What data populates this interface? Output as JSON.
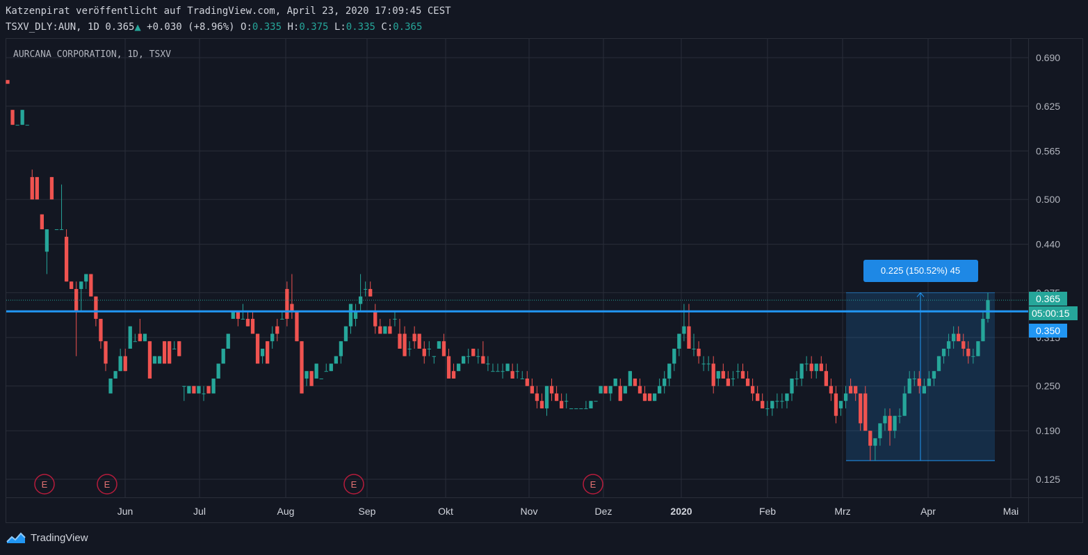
{
  "header": {
    "publisher_line": "Katzenpirat veröffentlicht auf TradingView.com, April 23, 2020 17:09:45 CEST",
    "symbol": "TSXV_DLY:AUN,",
    "interval": "1D",
    "last": "0.365",
    "change": "+0.030",
    "change_pct": "(+8.96%)",
    "o_label": "O:",
    "o_value": "0.335",
    "h_label": "H:",
    "h_value": "0.375",
    "l_label": "L:",
    "l_value": "0.335",
    "c_label": "C:",
    "c_value": "0.365"
  },
  "footer": {
    "brand": "TradingView"
  },
  "chart_data": {
    "type": "candlestick",
    "title": "AURCANA CORPORATION, 1D, TSXV",
    "y_ticks": [
      "0.690",
      "0.625",
      "0.565",
      "0.500",
      "0.440",
      "0.375",
      "0.315",
      "0.250",
      "0.190",
      "0.125"
    ],
    "x_ticks": [
      "Jun",
      "Jul",
      "Aug",
      "Sep",
      "Okt",
      "Nov",
      "Dez",
      "2020",
      "Feb",
      "Mrz",
      "Apr",
      "Mai"
    ],
    "ylim": [
      0.11,
      0.71
    ],
    "grid": true,
    "price_labels": {
      "last": "0.365",
      "countdown": "05:00:15",
      "line": "0.350"
    },
    "horizontal_line": 0.35,
    "measure": {
      "text": "0.225 (150.52%) 45",
      "from": 0.15,
      "to": 0.375,
      "bars": 45
    },
    "earnings_markers": [
      "E",
      "E",
      "E",
      "E"
    ],
    "colors": {
      "up": "#26a69a",
      "down": "#ef5350",
      "line": "#2196f3",
      "bg": "#131722",
      "grid": "#2a2e39"
    },
    "candles": [
      [
        0.66,
        0.66,
        0.655,
        0.655
      ],
      [
        0.62,
        0.62,
        0.6,
        0.6
      ],
      [
        0.6,
        0.6,
        0.6,
        0.6
      ],
      [
        0.6,
        0.62,
        0.6,
        0.62
      ],
      [
        0.6,
        0.6,
        0.6,
        0.6
      ],
      [
        0.53,
        0.54,
        0.5,
        0.5
      ],
      [
        0.53,
        0.53,
        0.5,
        0.5
      ],
      [
        0.48,
        0.48,
        0.46,
        0.46
      ],
      [
        0.43,
        0.46,
        0.4,
        0.46
      ],
      [
        0.53,
        0.53,
        0.5,
        0.5
      ],
      [
        0.46,
        0.46,
        0.46,
        0.46
      ],
      [
        0.46,
        0.52,
        0.46,
        0.46
      ],
      [
        0.45,
        0.46,
        0.39,
        0.39
      ],
      [
        0.39,
        0.39,
        0.38,
        0.38
      ],
      [
        0.38,
        0.39,
        0.29,
        0.35
      ],
      [
        0.38,
        0.39,
        0.35,
        0.39
      ],
      [
        0.39,
        0.4,
        0.38,
        0.4
      ],
      [
        0.4,
        0.4,
        0.37,
        0.37
      ],
      [
        0.37,
        0.37,
        0.33,
        0.34
      ],
      [
        0.34,
        0.34,
        0.3,
        0.31
      ],
      [
        0.31,
        0.31,
        0.27,
        0.28
      ],
      [
        0.24,
        0.26,
        0.24,
        0.26
      ],
      [
        0.26,
        0.27,
        0.26,
        0.27
      ],
      [
        0.27,
        0.3,
        0.27,
        0.29
      ],
      [
        0.29,
        0.3,
        0.27,
        0.27
      ],
      [
        0.3,
        0.33,
        0.3,
        0.33
      ],
      [
        0.31,
        0.32,
        0.31,
        0.31
      ],
      [
        0.32,
        0.34,
        0.31,
        0.31
      ],
      [
        0.31,
        0.32,
        0.31,
        0.32
      ],
      [
        0.31,
        0.31,
        0.26,
        0.26
      ],
      [
        0.28,
        0.29,
        0.28,
        0.29
      ],
      [
        0.28,
        0.29,
        0.28,
        0.29
      ],
      [
        0.31,
        0.31,
        0.28,
        0.28
      ],
      [
        0.31,
        0.31,
        0.28,
        0.28
      ],
      [
        0.3,
        0.31,
        0.3,
        0.3
      ],
      [
        0.31,
        0.31,
        0.29,
        0.29
      ],
      [
        0.25,
        0.25,
        0.23,
        0.25
      ],
      [
        0.24,
        0.25,
        0.24,
        0.25
      ],
      [
        0.25,
        0.25,
        0.24,
        0.24
      ],
      [
        0.24,
        0.25,
        0.24,
        0.25
      ],
      [
        0.24,
        0.25,
        0.23,
        0.24
      ],
      [
        0.25,
        0.25,
        0.24,
        0.24
      ],
      [
        0.24,
        0.26,
        0.24,
        0.26
      ],
      [
        0.26,
        0.28,
        0.26,
        0.28
      ],
      [
        0.28,
        0.3,
        0.28,
        0.3
      ],
      [
        0.3,
        0.32,
        0.3,
        0.32
      ],
      [
        0.34,
        0.35,
        0.34,
        0.35
      ],
      [
        0.35,
        0.35,
        0.33,
        0.34
      ],
      [
        0.34,
        0.36,
        0.34,
        0.34
      ],
      [
        0.34,
        0.35,
        0.33,
        0.33
      ],
      [
        0.34,
        0.35,
        0.32,
        0.32
      ],
      [
        0.32,
        0.32,
        0.28,
        0.28
      ],
      [
        0.29,
        0.3,
        0.28,
        0.3
      ],
      [
        0.31,
        0.31,
        0.28,
        0.28
      ],
      [
        0.31,
        0.33,
        0.3,
        0.32
      ],
      [
        0.33,
        0.34,
        0.31,
        0.32
      ],
      [
        0.34,
        0.35,
        0.34,
        0.34
      ],
      [
        0.38,
        0.39,
        0.33,
        0.34
      ],
      [
        0.36,
        0.4,
        0.34,
        0.35
      ],
      [
        0.35,
        0.35,
        0.31,
        0.31
      ],
      [
        0.31,
        0.31,
        0.24,
        0.24
      ],
      [
        0.26,
        0.27,
        0.25,
        0.27
      ],
      [
        0.27,
        0.27,
        0.25,
        0.25
      ],
      [
        0.26,
        0.28,
        0.26,
        0.28
      ],
      [
        0.26,
        0.26,
        0.26,
        0.26
      ],
      [
        0.27,
        0.28,
        0.27,
        0.27
      ],
      [
        0.27,
        0.28,
        0.27,
        0.28
      ],
      [
        0.28,
        0.29,
        0.28,
        0.29
      ],
      [
        0.29,
        0.31,
        0.28,
        0.31
      ],
      [
        0.31,
        0.33,
        0.31,
        0.33
      ],
      [
        0.33,
        0.36,
        0.32,
        0.36
      ],
      [
        0.34,
        0.36,
        0.33,
        0.35
      ],
      [
        0.36,
        0.4,
        0.35,
        0.37
      ],
      [
        0.38,
        0.39,
        0.37,
        0.38
      ],
      [
        0.38,
        0.39,
        0.37,
        0.37
      ],
      [
        0.35,
        0.36,
        0.32,
        0.33
      ],
      [
        0.33,
        0.34,
        0.32,
        0.32
      ],
      [
        0.32,
        0.33,
        0.32,
        0.33
      ],
      [
        0.33,
        0.34,
        0.32,
        0.32
      ],
      [
        0.34,
        0.35,
        0.33,
        0.34
      ],
      [
        0.32,
        0.34,
        0.3,
        0.3
      ],
      [
        0.32,
        0.33,
        0.29,
        0.29
      ],
      [
        0.3,
        0.31,
        0.29,
        0.3
      ],
      [
        0.32,
        0.33,
        0.3,
        0.31
      ],
      [
        0.32,
        0.32,
        0.3,
        0.3
      ],
      [
        0.3,
        0.31,
        0.28,
        0.29
      ],
      [
        0.3,
        0.31,
        0.29,
        0.3
      ],
      [
        0.29,
        0.29,
        0.28,
        0.29
      ],
      [
        0.3,
        0.31,
        0.3,
        0.31
      ],
      [
        0.31,
        0.32,
        0.29,
        0.29
      ],
      [
        0.29,
        0.3,
        0.26,
        0.26
      ],
      [
        0.27,
        0.28,
        0.26,
        0.26
      ],
      [
        0.27,
        0.28,
        0.27,
        0.28
      ],
      [
        0.28,
        0.29,
        0.28,
        0.29
      ],
      [
        0.29,
        0.3,
        0.28,
        0.29
      ],
      [
        0.3,
        0.3,
        0.29,
        0.29
      ],
      [
        0.29,
        0.3,
        0.28,
        0.29
      ],
      [
        0.29,
        0.31,
        0.28,
        0.28
      ],
      [
        0.28,
        0.29,
        0.27,
        0.28
      ],
      [
        0.27,
        0.28,
        0.27,
        0.27
      ],
      [
        0.27,
        0.28,
        0.27,
        0.27
      ],
      [
        0.27,
        0.28,
        0.26,
        0.27
      ],
      [
        0.27,
        0.28,
        0.27,
        0.28
      ],
      [
        0.27,
        0.28,
        0.26,
        0.26
      ],
      [
        0.27,
        0.28,
        0.26,
        0.27
      ],
      [
        0.26,
        0.27,
        0.26,
        0.26
      ],
      [
        0.26,
        0.27,
        0.25,
        0.25
      ],
      [
        0.25,
        0.26,
        0.24,
        0.24
      ],
      [
        0.24,
        0.25,
        0.22,
        0.23
      ],
      [
        0.23,
        0.24,
        0.22,
        0.22
      ],
      [
        0.22,
        0.25,
        0.21,
        0.25
      ],
      [
        0.25,
        0.26,
        0.23,
        0.24
      ],
      [
        0.24,
        0.25,
        0.23,
        0.23
      ],
      [
        0.23,
        0.24,
        0.22,
        0.22
      ],
      [
        0.23,
        0.24,
        0.22,
        0.23
      ],
      [
        0.22,
        0.22,
        0.22,
        0.22
      ],
      [
        0.22,
        0.22,
        0.22,
        0.22
      ],
      [
        0.22,
        0.22,
        0.22,
        0.22
      ],
      [
        0.22,
        0.23,
        0.22,
        0.22
      ],
      [
        0.22,
        0.23,
        0.22,
        0.23
      ],
      [
        0.23,
        0.23,
        0.23,
        0.23
      ],
      [
        0.24,
        0.25,
        0.24,
        0.25
      ],
      [
        0.25,
        0.25,
        0.24,
        0.24
      ],
      [
        0.24,
        0.25,
        0.23,
        0.25
      ],
      [
        0.25,
        0.26,
        0.25,
        0.26
      ],
      [
        0.25,
        0.26,
        0.23,
        0.23
      ],
      [
        0.24,
        0.25,
        0.24,
        0.25
      ],
      [
        0.25,
        0.27,
        0.25,
        0.27
      ],
      [
        0.26,
        0.26,
        0.25,
        0.25
      ],
      [
        0.25,
        0.26,
        0.24,
        0.24
      ],
      [
        0.24,
        0.25,
        0.23,
        0.23
      ],
      [
        0.24,
        0.24,
        0.23,
        0.23
      ],
      [
        0.23,
        0.24,
        0.23,
        0.24
      ],
      [
        0.24,
        0.26,
        0.24,
        0.25
      ],
      [
        0.25,
        0.27,
        0.24,
        0.26
      ],
      [
        0.26,
        0.28,
        0.25,
        0.28
      ],
      [
        0.28,
        0.3,
        0.27,
        0.3
      ],
      [
        0.3,
        0.32,
        0.29,
        0.32
      ],
      [
        0.32,
        0.36,
        0.31,
        0.33
      ],
      [
        0.33,
        0.36,
        0.3,
        0.3
      ],
      [
        0.3,
        0.32,
        0.29,
        0.3
      ],
      [
        0.3,
        0.31,
        0.28,
        0.29
      ],
      [
        0.28,
        0.29,
        0.27,
        0.28
      ],
      [
        0.28,
        0.29,
        0.27,
        0.28
      ],
      [
        0.28,
        0.29,
        0.24,
        0.25
      ],
      [
        0.26,
        0.27,
        0.25,
        0.27
      ],
      [
        0.27,
        0.28,
        0.26,
        0.26
      ],
      [
        0.26,
        0.27,
        0.25,
        0.25
      ],
      [
        0.26,
        0.27,
        0.25,
        0.26
      ],
      [
        0.27,
        0.28,
        0.26,
        0.27
      ],
      [
        0.27,
        0.28,
        0.26,
        0.26
      ],
      [
        0.26,
        0.27,
        0.25,
        0.25
      ],
      [
        0.25,
        0.26,
        0.23,
        0.24
      ],
      [
        0.24,
        0.25,
        0.23,
        0.23
      ],
      [
        0.23,
        0.24,
        0.22,
        0.22
      ],
      [
        0.22,
        0.23,
        0.21,
        0.22
      ],
      [
        0.22,
        0.23,
        0.21,
        0.23
      ],
      [
        0.23,
        0.24,
        0.22,
        0.23
      ],
      [
        0.23,
        0.24,
        0.22,
        0.23
      ],
      [
        0.23,
        0.24,
        0.22,
        0.24
      ],
      [
        0.24,
        0.26,
        0.23,
        0.26
      ],
      [
        0.26,
        0.27,
        0.25,
        0.26
      ],
      [
        0.26,
        0.28,
        0.25,
        0.28
      ],
      [
        0.28,
        0.29,
        0.27,
        0.28
      ],
      [
        0.28,
        0.29,
        0.26,
        0.27
      ],
      [
        0.27,
        0.28,
        0.26,
        0.28
      ],
      [
        0.28,
        0.29,
        0.27,
        0.27
      ],
      [
        0.27,
        0.28,
        0.25,
        0.25
      ],
      [
        0.25,
        0.26,
        0.23,
        0.24
      ],
      [
        0.24,
        0.25,
        0.2,
        0.21
      ],
      [
        0.22,
        0.23,
        0.21,
        0.23
      ],
      [
        0.23,
        0.25,
        0.22,
        0.24
      ],
      [
        0.25,
        0.26,
        0.24,
        0.24
      ],
      [
        0.25,
        0.25,
        0.23,
        0.24
      ],
      [
        0.24,
        0.24,
        0.19,
        0.2
      ],
      [
        0.24,
        0.25,
        0.19,
        0.19
      ],
      [
        0.19,
        0.19,
        0.15,
        0.17
      ],
      [
        0.17,
        0.18,
        0.15,
        0.18
      ],
      [
        0.18,
        0.2,
        0.17,
        0.2
      ],
      [
        0.2,
        0.22,
        0.19,
        0.21
      ],
      [
        0.21,
        0.22,
        0.17,
        0.19
      ],
      [
        0.19,
        0.21,
        0.18,
        0.21
      ],
      [
        0.21,
        0.22,
        0.2,
        0.21
      ],
      [
        0.21,
        0.25,
        0.21,
        0.24
      ],
      [
        0.24,
        0.27,
        0.24,
        0.26
      ],
      [
        0.26,
        0.27,
        0.25,
        0.26
      ],
      [
        0.26,
        0.27,
        0.24,
        0.25
      ],
      [
        0.24,
        0.26,
        0.24,
        0.25
      ],
      [
        0.25,
        0.27,
        0.25,
        0.26
      ],
      [
        0.26,
        0.27,
        0.25,
        0.27
      ],
      [
        0.27,
        0.29,
        0.27,
        0.29
      ],
      [
        0.29,
        0.3,
        0.28,
        0.3
      ],
      [
        0.3,
        0.32,
        0.29,
        0.31
      ],
      [
        0.31,
        0.33,
        0.3,
        0.32
      ],
      [
        0.32,
        0.33,
        0.31,
        0.31
      ],
      [
        0.31,
        0.32,
        0.29,
        0.3
      ],
      [
        0.3,
        0.31,
        0.28,
        0.29
      ],
      [
        0.29,
        0.3,
        0.28,
        0.29
      ],
      [
        0.29,
        0.31,
        0.29,
        0.31
      ],
      [
        0.31,
        0.35,
        0.31,
        0.34
      ],
      [
        0.34,
        0.375,
        0.335,
        0.365
      ]
    ]
  }
}
